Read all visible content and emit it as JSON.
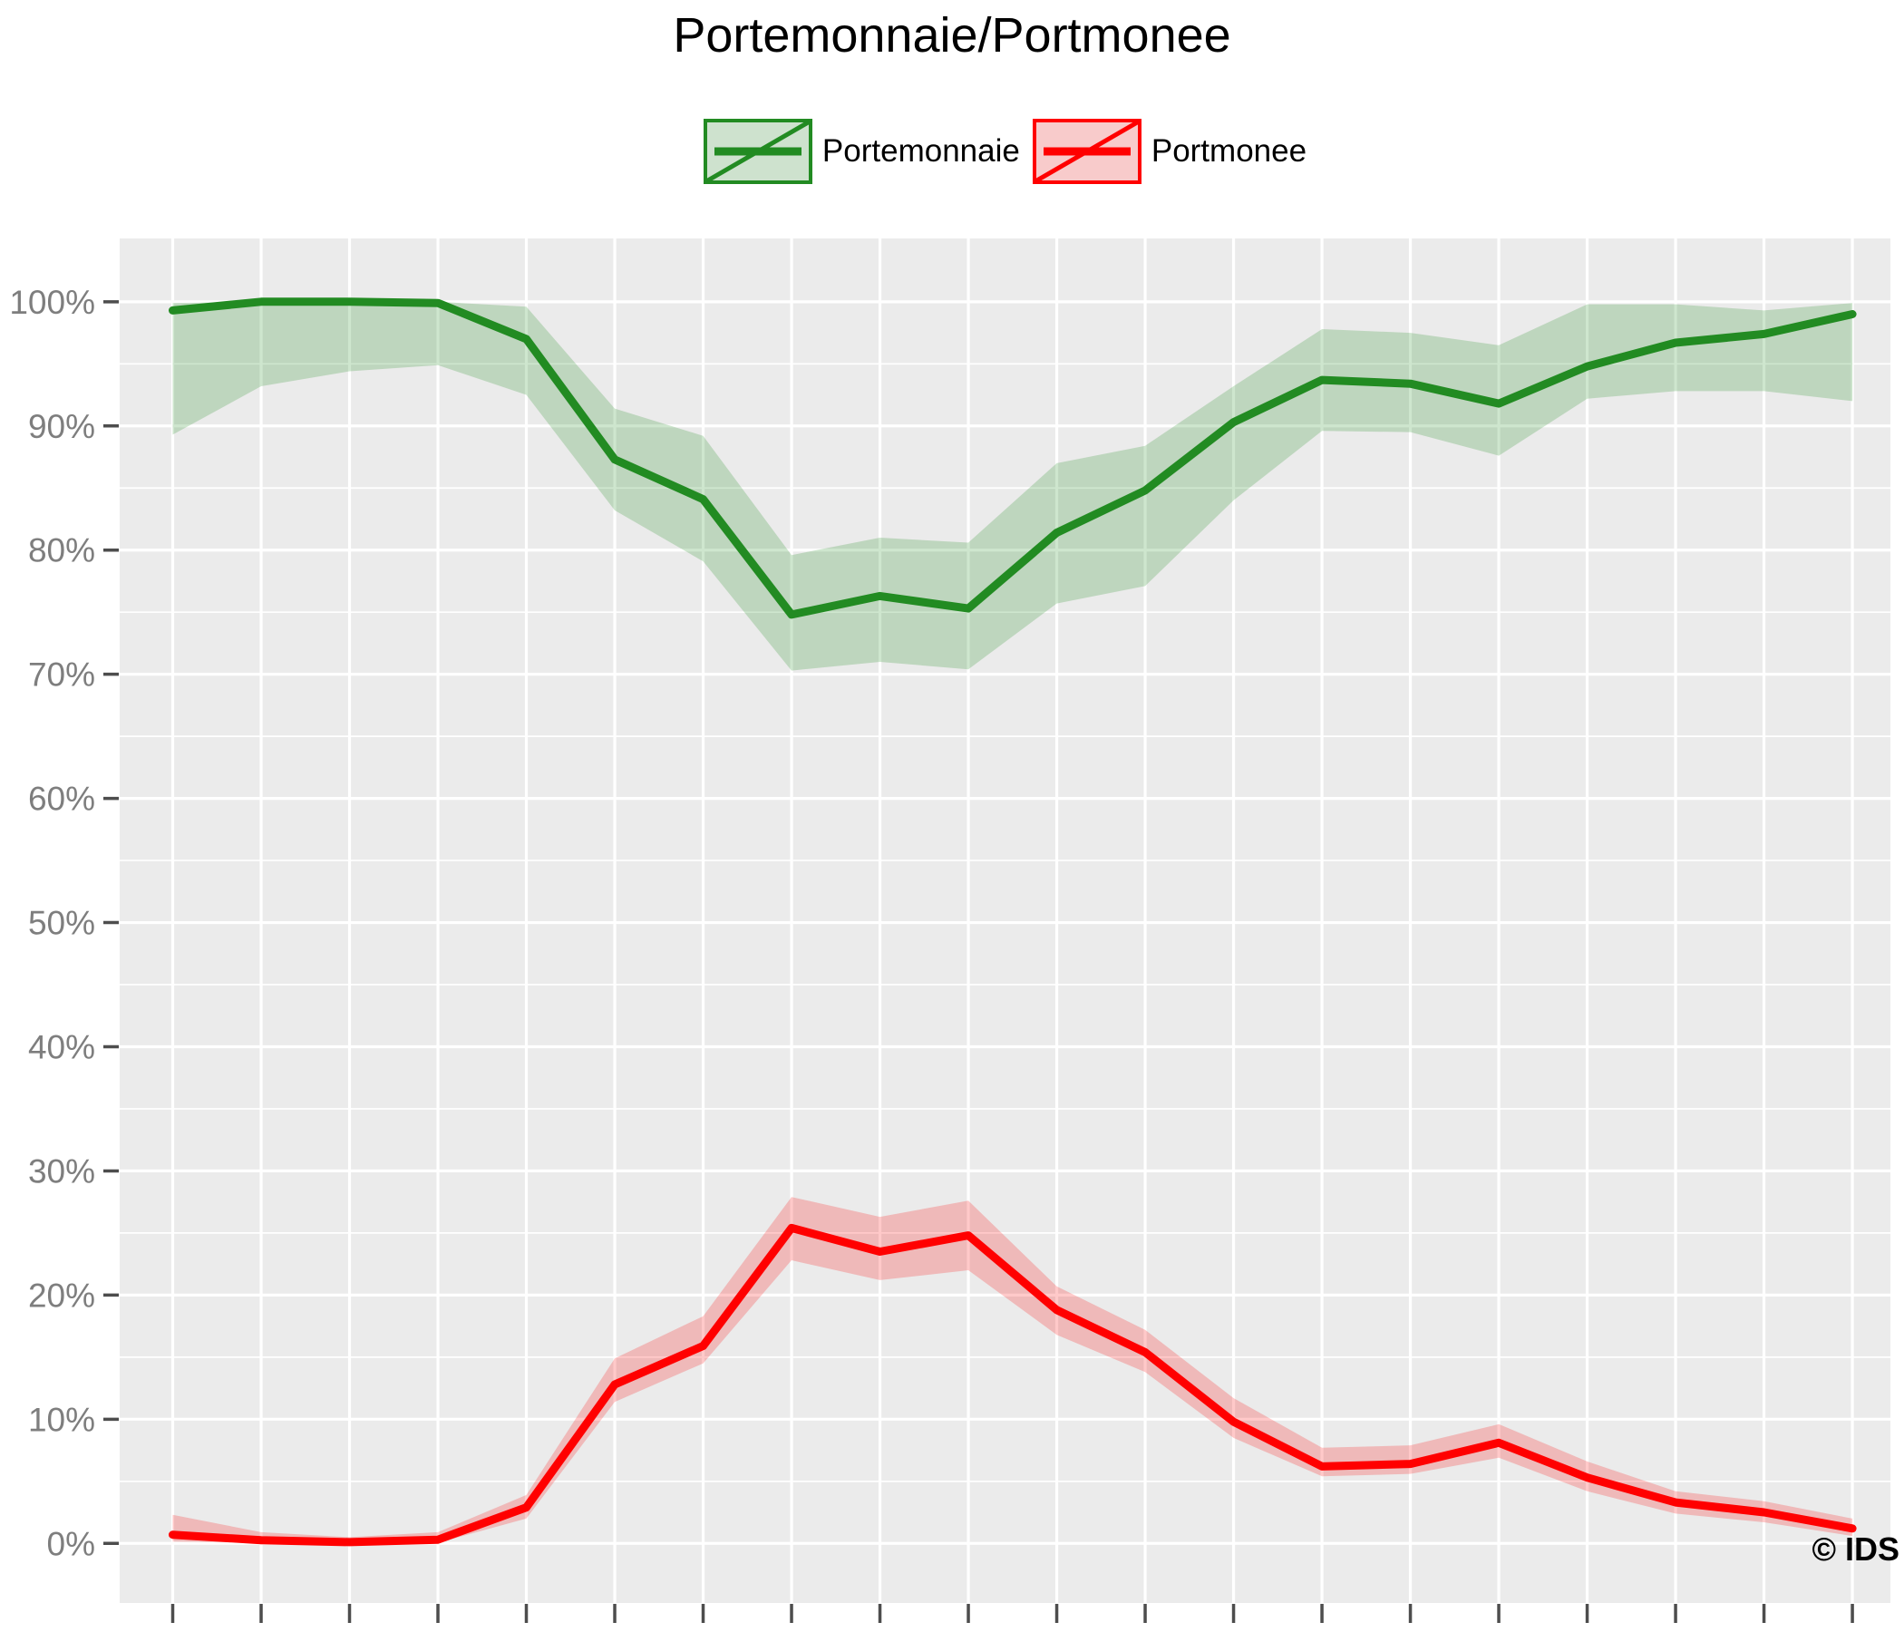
{
  "title": "Portemonnaie/Portmonee",
  "copyright": "© IDS",
  "legend": [
    {
      "label": "Portemonnaie",
      "color": "#228B22",
      "fill": "#CEE2CE"
    },
    {
      "label": "Portmonee",
      "color": "#FF0000",
      "fill": "#F8CBCB"
    }
  ],
  "y_axis": {
    "tick_labels": [
      "0%",
      "10%",
      "20%",
      "30%",
      "40%",
      "50%",
      "60%",
      "70%",
      "80%",
      "90%",
      "100%"
    ],
    "major_step": 10,
    "minor_step": 5
  },
  "x_axis": {
    "tick_count": 20,
    "tick_labels_visible": false
  },
  "colors": {
    "panel_bg": "#EBEBEB",
    "grid": "#FFFFFF",
    "tick": "#4D4D4D",
    "axis_label": "#7E7E7E",
    "title": "#000000"
  },
  "chart_data": {
    "type": "line",
    "title": "Portemonnaie/Portmonee",
    "xlabel": "",
    "ylabel": "",
    "grid": true,
    "legend_position": "top",
    "x": [
      0,
      1,
      2,
      3,
      4,
      5,
      6,
      7,
      8,
      9,
      10,
      11,
      12,
      13,
      14,
      15,
      16,
      17,
      18,
      19
    ],
    "xlim": [
      -0.6,
      19.43
    ],
    "ylim": [
      -4.8,
      105.1
    ],
    "y_unit": "percent",
    "series": [
      {
        "name": "Portemonnaie",
        "color": "#228B22",
        "band_fill": "rgba(34,139,34,0.22)",
        "values": [
          99.3,
          100.0,
          100.0,
          99.9,
          97.0,
          87.3,
          84.1,
          74.8,
          76.3,
          75.3,
          81.4,
          84.8,
          90.3,
          93.7,
          93.4,
          91.8,
          94.8,
          96.7,
          97.4,
          99.0
        ],
        "band_lower": [
          89.3,
          93.2,
          94.4,
          94.9,
          92.5,
          83.2,
          79.1,
          70.3,
          71.0,
          70.4,
          75.7,
          77.1,
          84.0,
          89.6,
          89.5,
          87.6,
          92.2,
          92.8,
          92.8,
          92.0
        ],
        "band_upper": [
          99.9,
          100.0,
          100.0,
          100.0,
          99.6,
          91.4,
          89.2,
          79.6,
          81.0,
          80.6,
          87.0,
          88.4,
          93.2,
          97.8,
          97.5,
          96.5,
          99.8,
          99.8,
          99.3,
          99.9
        ]
      },
      {
        "name": "Portmonee",
        "color": "#FF0000",
        "band_fill": "rgba(255,0,0,0.21)",
        "values": [
          0.7,
          0.25,
          0.1,
          0.3,
          2.9,
          12.8,
          15.9,
          25.4,
          23.5,
          24.8,
          18.8,
          15.4,
          9.8,
          6.2,
          6.4,
          8.1,
          5.3,
          3.3,
          2.5,
          1.2
        ],
        "band_lower": [
          0.15,
          0.05,
          0.02,
          0.05,
          2.0,
          11.4,
          14.5,
          22.8,
          21.2,
          22.0,
          16.8,
          13.8,
          8.5,
          5.4,
          5.6,
          6.9,
          4.2,
          2.4,
          1.7,
          0.6
        ],
        "band_upper": [
          2.3,
          0.9,
          0.5,
          0.9,
          3.9,
          14.9,
          18.3,
          27.9,
          26.3,
          27.6,
          20.7,
          17.2,
          11.7,
          7.7,
          7.9,
          9.6,
          6.6,
          4.2,
          3.4,
          2.0
        ]
      }
    ]
  }
}
